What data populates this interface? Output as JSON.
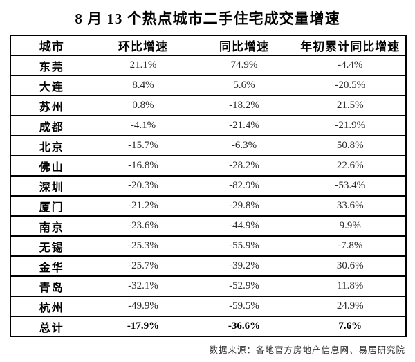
{
  "title": "8 月 13 个热点城市二手住宅成交量增速",
  "table": {
    "headers": [
      "城市",
      "环比增速",
      "同比增速",
      "年初累计同比增速"
    ],
    "rows": [
      {
        "city": "东莞",
        "mom": "21.1%",
        "yoy": "74.9%",
        "ytd": "-4.4%"
      },
      {
        "city": "大连",
        "mom": "8.4%",
        "yoy": "5.6%",
        "ytd": "-20.5%"
      },
      {
        "city": "苏州",
        "mom": "0.8%",
        "yoy": "-18.2%",
        "ytd": "21.5%"
      },
      {
        "city": "成都",
        "mom": "-4.1%",
        "yoy": "-21.4%",
        "ytd": "-21.9%"
      },
      {
        "city": "北京",
        "mom": "-15.7%",
        "yoy": "-6.3%",
        "ytd": "50.8%"
      },
      {
        "city": "佛山",
        "mom": "-16.8%",
        "yoy": "-28.2%",
        "ytd": "22.6%"
      },
      {
        "city": "深圳",
        "mom": "-20.3%",
        "yoy": "-82.9%",
        "ytd": "-53.4%"
      },
      {
        "city": "厦门",
        "mom": "-21.2%",
        "yoy": "-29.8%",
        "ytd": "33.6%"
      },
      {
        "city": "南京",
        "mom": "-23.6%",
        "yoy": "-44.9%",
        "ytd": "9.9%"
      },
      {
        "city": "无锡",
        "mom": "-25.3%",
        "yoy": "-55.9%",
        "ytd": "-7.8%"
      },
      {
        "city": "金华",
        "mom": "-25.7%",
        "yoy": "-39.2%",
        "ytd": "30.6%"
      },
      {
        "city": "青岛",
        "mom": "-32.1%",
        "yoy": "-52.9%",
        "ytd": "11.8%"
      },
      {
        "city": "杭州",
        "mom": "-49.9%",
        "yoy": "-59.5%",
        "ytd": "24.9%"
      },
      {
        "city": "总计",
        "mom": "-17.9%",
        "yoy": "-36.6%",
        "ytd": "7.6%",
        "is_total": true
      }
    ]
  },
  "footer": {
    "source": "数据来源：各地官方房地产信息网、易居研究院"
  },
  "colors": {
    "text": "#000000",
    "value_text": "#2b2b2b",
    "border": "#000000",
    "background": "#ffffff"
  },
  "chart_data": {
    "type": "table",
    "title": "8 月 13 个热点城市二手住宅成交量增速",
    "categories": [
      "东莞",
      "大连",
      "苏州",
      "成都",
      "北京",
      "佛山",
      "深圳",
      "厦门",
      "南京",
      "无锡",
      "金华",
      "青岛",
      "杭州",
      "总计"
    ],
    "series": [
      {
        "name": "环比增速",
        "values": [
          21.1,
          8.4,
          0.8,
          -4.1,
          -15.7,
          -16.8,
          -20.3,
          -21.2,
          -23.6,
          -25.3,
          -25.7,
          -32.1,
          -49.9,
          -17.9
        ]
      },
      {
        "name": "同比增速",
        "values": [
          74.9,
          5.6,
          -18.2,
          -21.4,
          -6.3,
          -28.2,
          -82.9,
          -29.8,
          -44.9,
          -55.9,
          -39.2,
          -52.9,
          -59.5,
          -36.6
        ]
      },
      {
        "name": "年初累计同比增速",
        "values": [
          -4.4,
          -20.5,
          21.5,
          -21.9,
          50.8,
          22.6,
          -53.4,
          33.6,
          9.9,
          -7.8,
          30.6,
          11.8,
          24.9,
          7.6
        ]
      }
    ],
    "unit": "%",
    "source": "数据来源：各地官方房地产信息网、易居研究院"
  }
}
